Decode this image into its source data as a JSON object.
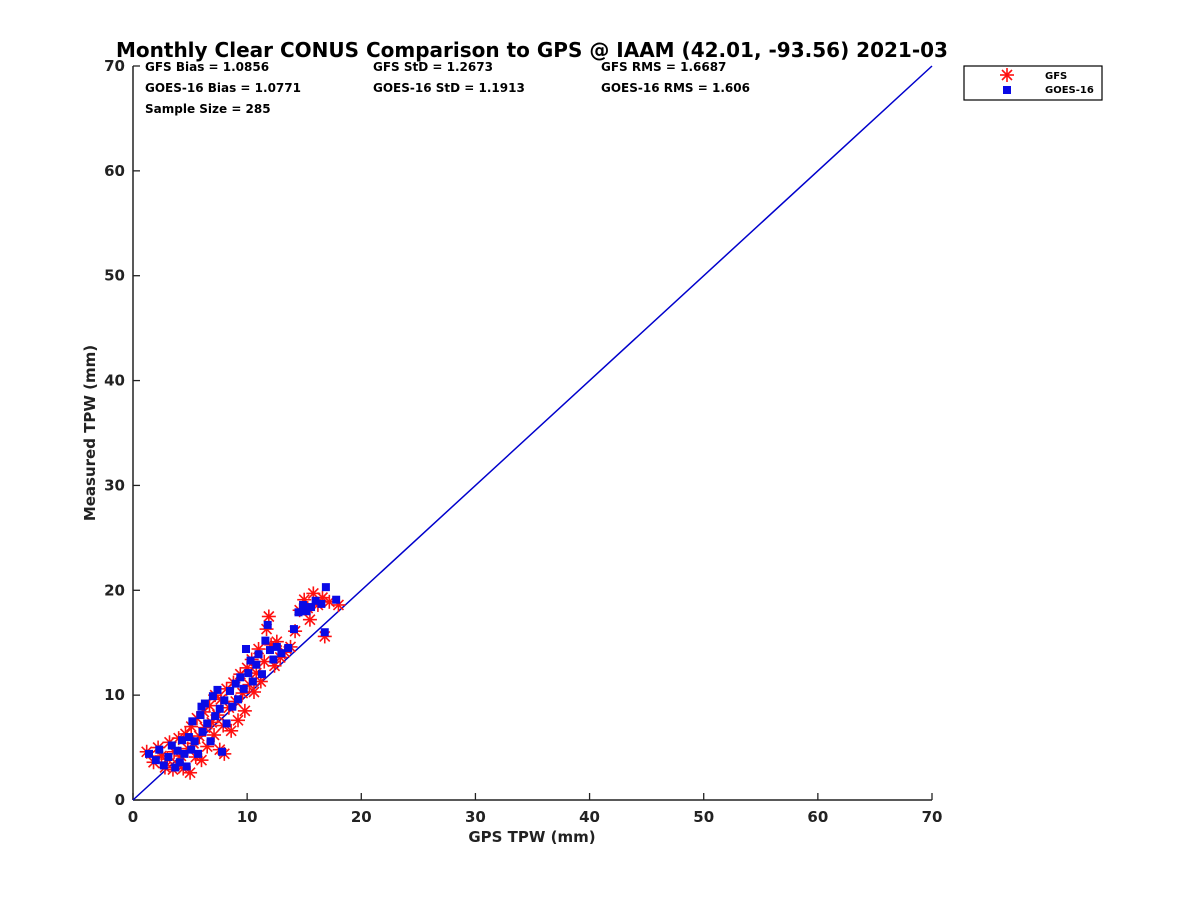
{
  "chart_data": {
    "type": "scatter",
    "title": "Monthly Clear CONUS Comparison to GPS @ IAAM (42.01, -93.56) 2021-03",
    "xlabel": "GPS TPW (mm)",
    "ylabel": "Measured TPW (mm)",
    "xlim": [
      0,
      70
    ],
    "ylim": [
      0,
      70
    ],
    "xticks": [
      0,
      10,
      20,
      30,
      40,
      50,
      60,
      70
    ],
    "yticks": [
      0,
      10,
      20,
      30,
      40,
      50,
      60,
      70
    ],
    "grid": false,
    "legend_position": "outside top-right",
    "stats": {
      "gfs_bias": "GFS Bias = 1.0856",
      "goes_bias": "GOES-16 Bias = 1.0771",
      "sample_size": "Sample Size = 285",
      "gfs_std": "GFS StD = 1.2673",
      "goes_std": "GOES-16 StD = 1.1913",
      "gfs_rms": "GFS RMS = 1.6687",
      "goes_rms": "GOES-16 RMS = 1.606"
    },
    "reference_line": {
      "x": [
        0,
        70
      ],
      "y": [
        0,
        70
      ],
      "color": "#0000cc"
    },
    "series": [
      {
        "name": "GFS",
        "marker": "asterisk",
        "color": "#ff1010",
        "points": [
          [
            1.2,
            4.6
          ],
          [
            1.8,
            3.6
          ],
          [
            2.2,
            5.0
          ],
          [
            2.5,
            4.2
          ],
          [
            2.8,
            3.1
          ],
          [
            3.0,
            3.9
          ],
          [
            3.2,
            5.5
          ],
          [
            3.5,
            2.9
          ],
          [
            3.6,
            4.6
          ],
          [
            3.9,
            3.4
          ],
          [
            4.0,
            5.9
          ],
          [
            4.2,
            4.2
          ],
          [
            4.4,
            3.0
          ],
          [
            4.6,
            6.3
          ],
          [
            4.8,
            4.9
          ],
          [
            5.0,
            2.6
          ],
          [
            5.1,
            7.0
          ],
          [
            5.3,
            5.4
          ],
          [
            5.5,
            4.1
          ],
          [
            5.6,
            7.8
          ],
          [
            5.8,
            6.1
          ],
          [
            6.0,
            3.8
          ],
          [
            6.2,
            8.4
          ],
          [
            6.3,
            6.9
          ],
          [
            6.5,
            5.1
          ],
          [
            6.7,
            9.0
          ],
          [
            6.9,
            7.4
          ],
          [
            7.1,
            6.2
          ],
          [
            7.2,
            10.0
          ],
          [
            7.4,
            8.1
          ],
          [
            7.6,
            4.8
          ],
          [
            7.7,
            9.6
          ],
          [
            7.9,
            7.1
          ],
          [
            8.0,
            4.4
          ],
          [
            8.2,
            10.6
          ],
          [
            8.4,
            8.8
          ],
          [
            8.6,
            6.6
          ],
          [
            8.8,
            11.2
          ],
          [
            9.0,
            9.4
          ],
          [
            9.2,
            7.6
          ],
          [
            9.4,
            12.0
          ],
          [
            9.6,
            10.2
          ],
          [
            9.8,
            8.5
          ],
          [
            10.0,
            12.6
          ],
          [
            10.2,
            11.0
          ],
          [
            10.4,
            13.4
          ],
          [
            10.6,
            10.3
          ],
          [
            10.8,
            12.1
          ],
          [
            11.0,
            14.4
          ],
          [
            11.2,
            11.3
          ],
          [
            11.5,
            13.2
          ],
          [
            11.7,
            16.3
          ],
          [
            11.9,
            17.5
          ],
          [
            12.1,
            14.8
          ],
          [
            12.4,
            12.8
          ],
          [
            12.6,
            15.1
          ],
          [
            12.9,
            13.6
          ],
          [
            13.3,
            14.1
          ],
          [
            13.8,
            14.6
          ],
          [
            14.2,
            16.1
          ],
          [
            14.6,
            18.1
          ],
          [
            15.0,
            19.1
          ],
          [
            15.3,
            18.3
          ],
          [
            15.5,
            17.2
          ],
          [
            15.8,
            19.7
          ],
          [
            16.2,
            18.6
          ],
          [
            16.6,
            19.3
          ],
          [
            16.8,
            15.6
          ],
          [
            17.2,
            18.9
          ],
          [
            18.0,
            18.6
          ]
        ]
      },
      {
        "name": "GOES-16",
        "marker": "square",
        "color": "#0a0ae6",
        "points": [
          [
            1.4,
            4.4
          ],
          [
            2.0,
            3.8
          ],
          [
            2.3,
            4.8
          ],
          [
            2.7,
            3.3
          ],
          [
            3.1,
            4.1
          ],
          [
            3.4,
            5.2
          ],
          [
            3.7,
            3.1
          ],
          [
            3.9,
            4.7
          ],
          [
            4.1,
            3.6
          ],
          [
            4.3,
            5.7
          ],
          [
            4.5,
            4.4
          ],
          [
            4.7,
            3.2
          ],
          [
            4.9,
            6.0
          ],
          [
            5.1,
            4.8
          ],
          [
            5.2,
            7.5
          ],
          [
            5.4,
            5.6
          ],
          [
            5.7,
            4.4
          ],
          [
            5.9,
            8.1
          ],
          [
            6.1,
            6.5
          ],
          [
            6.3,
            9.2
          ],
          [
            6.5,
            7.3
          ],
          [
            6.8,
            5.6
          ],
          [
            7.0,
            9.9
          ],
          [
            7.2,
            8.0
          ],
          [
            7.4,
            10.5
          ],
          [
            7.6,
            8.7
          ],
          [
            7.8,
            4.6
          ],
          [
            8.0,
            9.5
          ],
          [
            8.2,
            7.3
          ],
          [
            8.5,
            10.4
          ],
          [
            8.7,
            8.9
          ],
          [
            9.0,
            11.1
          ],
          [
            9.2,
            9.6
          ],
          [
            9.4,
            11.7
          ],
          [
            9.7,
            10.6
          ],
          [
            9.9,
            14.4
          ],
          [
            10.1,
            12.1
          ],
          [
            10.3,
            13.3
          ],
          [
            10.5,
            11.3
          ],
          [
            10.8,
            12.9
          ],
          [
            11.0,
            13.9
          ],
          [
            11.3,
            12.0
          ],
          [
            11.6,
            15.2
          ],
          [
            11.8,
            16.7
          ],
          [
            12.0,
            14.3
          ],
          [
            12.3,
            13.4
          ],
          [
            12.6,
            14.6
          ],
          [
            13.0,
            14.0
          ],
          [
            13.6,
            14.5
          ],
          [
            14.1,
            16.3
          ],
          [
            14.5,
            17.9
          ],
          [
            14.9,
            18.6
          ],
          [
            15.2,
            18.0
          ],
          [
            15.6,
            18.4
          ],
          [
            16.0,
            19.0
          ],
          [
            16.5,
            18.7
          ],
          [
            16.9,
            20.3
          ],
          [
            16.8,
            16.0
          ],
          [
            17.8,
            19.1
          ],
          [
            6.0,
            8.9
          ]
        ]
      }
    ]
  }
}
